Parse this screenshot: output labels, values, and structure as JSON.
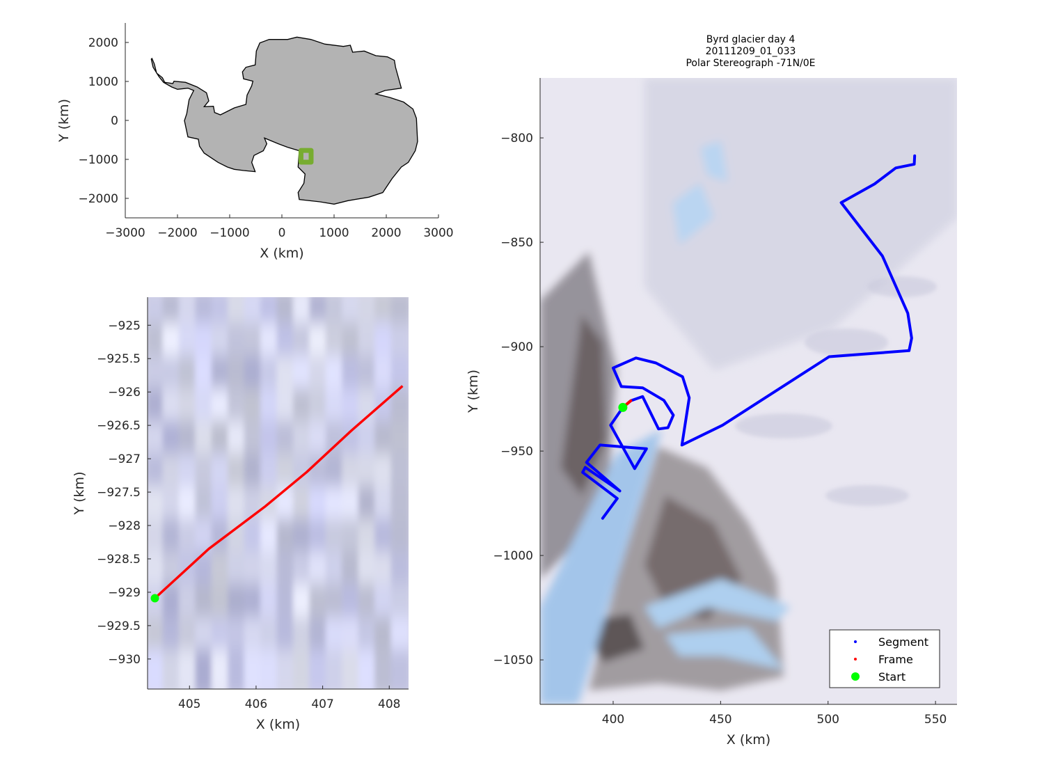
{
  "chart_data": [
    {
      "type": "line",
      "xlabel": "X (km)",
      "ylabel": "Y (km)",
      "xlim": [
        -3000,
        3000
      ],
      "ylim": [
        -2500,
        2500
      ],
      "xticks": [
        -3000,
        -2000,
        -1000,
        0,
        1000,
        2000,
        3000
      ],
      "yticks": [
        -2000,
        -1000,
        0,
        1000,
        2000
      ],
      "land_color": "#b3b3b3",
      "highlight_box": {
        "x": [
          366,
          560
        ],
        "y": [
          -1071,
          -771
        ],
        "color": "#77ac30"
      },
      "grid": false
    },
    {
      "type": "line",
      "xlabel": "X (km)",
      "ylabel": "Y (km)",
      "xlim": [
        404.37,
        408.29
      ],
      "ylim": [
        -930.45,
        -924.58
      ],
      "xticks": [
        405,
        406,
        407,
        408
      ],
      "yticks": [
        -925,
        -925.5,
        -926,
        -926.5,
        -927,
        -927.5,
        -928,
        -928.5,
        -929,
        -929.5,
        -930
      ],
      "series": [
        {
          "role": "frame",
          "color": "#ff0000",
          "points": [
            [
              404.48,
              -929.09
            ],
            [
              405.29,
              -928.35
            ],
            [
              406.13,
              -927.72
            ],
            [
              406.76,
              -927.2
            ],
            [
              407.43,
              -926.58
            ],
            [
              408.2,
              -925.91
            ]
          ]
        }
      ],
      "start": {
        "x": 404.48,
        "y": -929.09,
        "color": "#00ff00"
      },
      "grid": false
    },
    {
      "type": "line",
      "title": [
        "Byrd glacier day 4",
        "20111209_01_033",
        "Polar Stereograph -71N/0E"
      ],
      "xlabel": "X (km)",
      "ylabel": "Y (km)",
      "xlim": [
        366,
        560
      ],
      "ylim": [
        -1071.3,
        -771.3
      ],
      "xticks": [
        400,
        450,
        500,
        550
      ],
      "yticks": [
        -800,
        -850,
        -900,
        -950,
        -1000,
        -1050
      ],
      "series": [
        {
          "name": "Segment",
          "color": "#0000ff",
          "points": [
            [
              395.1,
              -982.2
            ],
            [
              401.9,
              -972.7
            ],
            [
              385.8,
              -960.2
            ],
            [
              387.0,
              -957.8
            ],
            [
              403.1,
              -969.1
            ],
            [
              387.6,
              -955.4
            ],
            [
              393.9,
              -947.1
            ],
            [
              415.5,
              -948.9
            ],
            [
              410.0,
              -958.4
            ],
            [
              398.8,
              -937.6
            ],
            [
              404.5,
              -929.1
            ],
            [
              408.2,
              -925.9
            ],
            [
              413.7,
              -923.9
            ],
            [
              421.1,
              -939.4
            ],
            [
              425.5,
              -938.8
            ],
            [
              428.0,
              -932.8
            ],
            [
              423.6,
              -925.7
            ],
            [
              413.7,
              -919.7
            ],
            [
              403.8,
              -919.1
            ],
            [
              400.0,
              -910.2
            ],
            [
              410.6,
              -905.4
            ],
            [
              419.9,
              -907.8
            ],
            [
              432.3,
              -914.4
            ],
            [
              435.4,
              -924.5
            ],
            [
              432.0,
              -947.1
            ],
            [
              450.9,
              -937.6
            ],
            [
              500.5,
              -904.8
            ],
            [
              537.7,
              -901.9
            ],
            [
              538.9,
              -895.9
            ],
            [
              537.1,
              -884.0
            ],
            [
              525.3,
              -856.6
            ],
            [
              506.1,
              -831.0
            ],
            [
              521.6,
              -822.1
            ],
            [
              531.5,
              -814.4
            ],
            [
              540.1,
              -812.6
            ],
            [
              540.3,
              -808.6
            ]
          ]
        },
        {
          "name": "Frame",
          "color": "#ff0000",
          "points": [
            [
              404.5,
              -929.1
            ],
            [
              408.2,
              -925.9
            ]
          ]
        }
      ],
      "start": {
        "name": "Start",
        "x": 404.5,
        "y": -929.1,
        "color": "#00ff00"
      },
      "legend": {
        "position": "bottom-right",
        "entries": [
          "Segment",
          "Frame",
          "Start"
        ]
      },
      "grid": false
    }
  ]
}
